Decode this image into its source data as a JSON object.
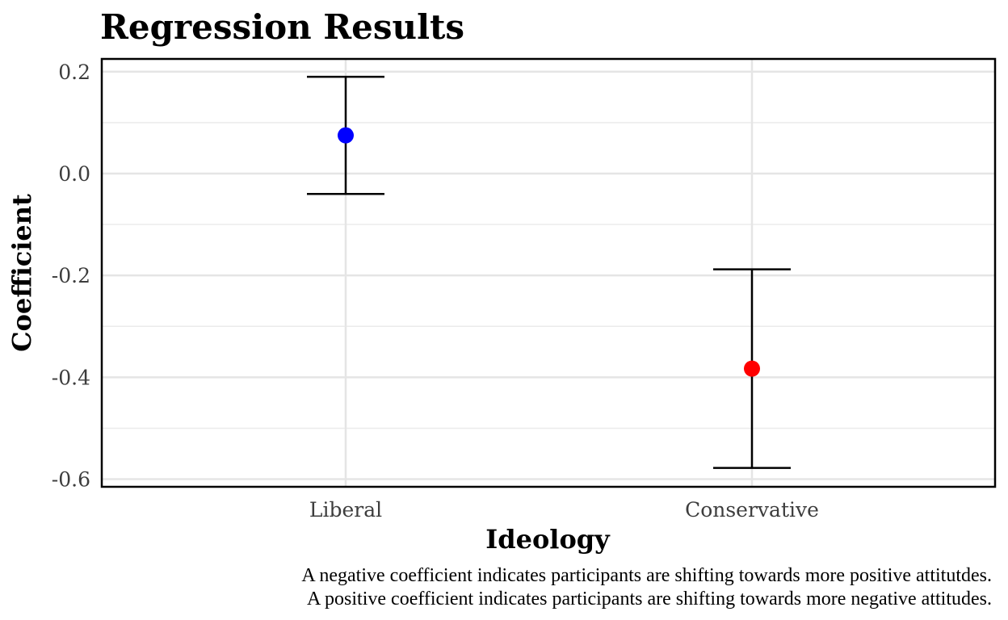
{
  "chart_data": {
    "type": "scatter",
    "title": "Regression Results",
    "xlabel": "Ideology",
    "ylabel": "Coefficient",
    "categories": [
      "Liberal",
      "Conservative"
    ],
    "points": [
      {
        "category": "Liberal",
        "estimate": 0.075,
        "lower": -0.04,
        "upper": 0.19,
        "color": "#0000ff"
      },
      {
        "category": "Conservative",
        "estimate": -0.383,
        "lower": -0.578,
        "upper": -0.188,
        "color": "#ff0000"
      }
    ],
    "ylim": [
      -0.615,
      0.225
    ],
    "yticks": [
      0.2,
      0.0,
      -0.2,
      -0.4,
      -0.6
    ],
    "ytick_labels": [
      "0.2",
      "0.0",
      "-0.2",
      "-0.4",
      "-0.6"
    ],
    "grid": true,
    "caption": [
      "A negative coefficient indicates participants are shifting towards more positive attitutdes.",
      "A positive coefficient indicates participants are shifting towards more negative attitudes."
    ]
  }
}
